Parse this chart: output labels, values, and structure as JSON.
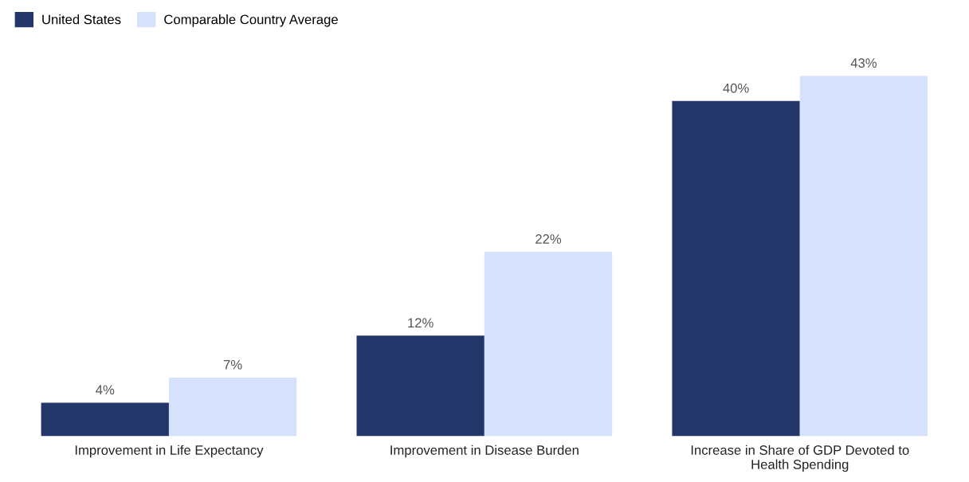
{
  "chart_data": {
    "type": "bar",
    "categories": [
      "Improvement in Life Expectancy",
      "Improvement in Disease Burden",
      "Increase in Share of GDP Devoted to\nHealth Spending"
    ],
    "series": [
      {
        "name": "United States",
        "color": "#22366a",
        "values": [
          4,
          12,
          40
        ],
        "value_labels": [
          "4%",
          "12%",
          "40%"
        ]
      },
      {
        "name": "Comparable Country Average",
        "color": "#d6e2fc",
        "values": [
          7,
          22,
          43
        ],
        "value_labels": [
          "7%",
          "22%",
          "43%"
        ]
      }
    ],
    "legend": "top left",
    "grid": false
  }
}
